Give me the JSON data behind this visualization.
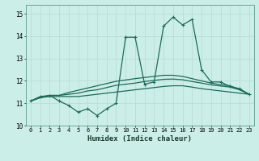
{
  "xlabel": "Humidex (Indice chaleur)",
  "bg_color": "#cceee8",
  "line_color": "#1a6b5a",
  "grid_color": "#b8ddd8",
  "xlim": [
    -0.5,
    23.5
  ],
  "ylim": [
    10,
    15.4
  ],
  "yticks": [
    10,
    11,
    12,
    13,
    14,
    15
  ],
  "xticks": [
    0,
    1,
    2,
    3,
    4,
    5,
    6,
    7,
    8,
    9,
    10,
    11,
    12,
    13,
    14,
    15,
    16,
    17,
    18,
    19,
    20,
    21,
    22,
    23
  ],
  "series": [
    [
      11.1,
      11.3,
      11.35,
      11.1,
      10.9,
      10.6,
      10.75,
      10.45,
      10.75,
      11.0,
      13.95,
      13.95,
      11.85,
      11.95,
      14.45,
      14.85,
      14.5,
      14.75,
      12.5,
      11.95,
      11.95,
      11.75,
      11.65,
      11.4
    ],
    [
      11.1,
      11.25,
      11.3,
      11.3,
      11.3,
      11.3,
      11.35,
      11.4,
      11.45,
      11.5,
      11.55,
      11.6,
      11.65,
      11.7,
      11.75,
      11.78,
      11.78,
      11.72,
      11.65,
      11.6,
      11.55,
      11.5,
      11.45,
      11.4
    ],
    [
      11.1,
      11.25,
      11.35,
      11.35,
      11.4,
      11.45,
      11.55,
      11.6,
      11.7,
      11.8,
      11.85,
      11.9,
      11.97,
      12.02,
      12.07,
      12.08,
      12.05,
      11.97,
      11.9,
      11.82,
      11.77,
      11.72,
      11.6,
      11.4
    ],
    [
      11.1,
      11.25,
      11.35,
      11.35,
      11.48,
      11.58,
      11.68,
      11.78,
      11.88,
      11.98,
      12.04,
      12.1,
      12.15,
      12.2,
      12.25,
      12.25,
      12.2,
      12.1,
      12.0,
      11.9,
      11.83,
      11.78,
      11.62,
      11.4
    ]
  ]
}
